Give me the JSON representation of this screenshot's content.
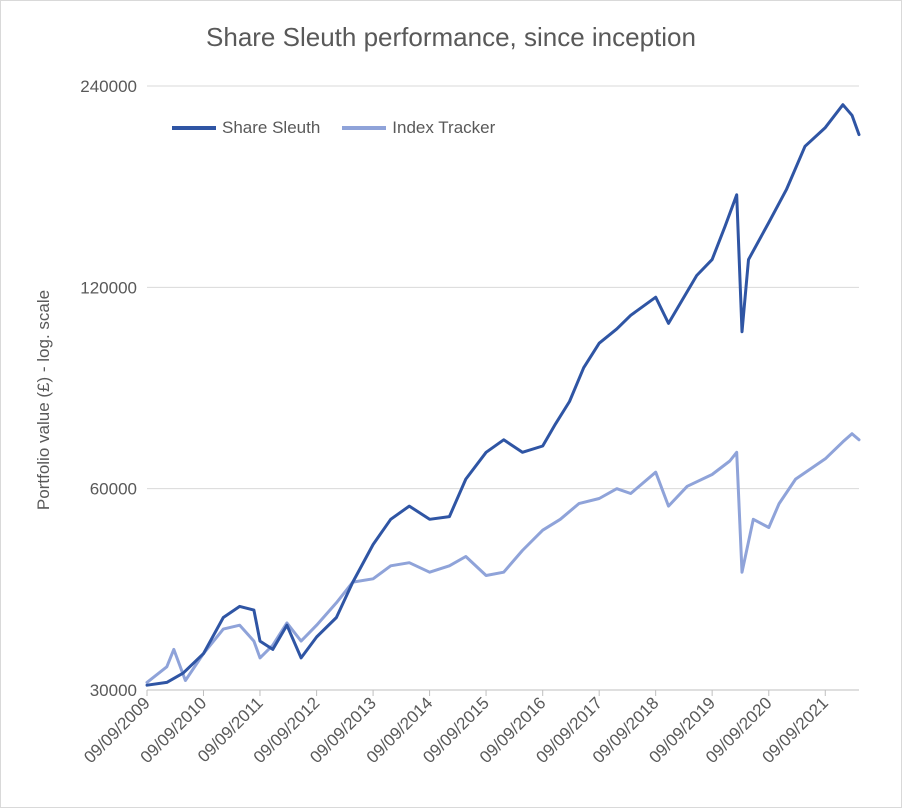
{
  "chart_data": {
    "type": "line",
    "title": "Share Sleuth performance, since inception",
    "ylabel": "Portfolio value (£) - log. scale",
    "xlabel": "",
    "y_scale": "log",
    "ylim": [
      30000,
      240000
    ],
    "y_ticks": [
      "240000",
      "120000",
      "60000",
      "30000"
    ],
    "x_range": [
      "2009-09-09",
      "2022-04-15"
    ],
    "x_ticks": [
      "09/09/2009",
      "09/09/2010",
      "09/09/2011",
      "09/09/2012",
      "09/09/2013",
      "09/09/2014",
      "09/09/2015",
      "09/09/2016",
      "09/09/2017",
      "09/09/2018",
      "09/09/2019",
      "09/09/2020",
      "09/09/2021"
    ],
    "grid": "horizontal",
    "legend_position": "top-left",
    "series": [
      {
        "name": "Share Sleuth",
        "color": "#2f55a4",
        "points": [
          [
            "2009-09-09",
            30500
          ],
          [
            "2010-01-15",
            30800
          ],
          [
            "2010-05-01",
            31800
          ],
          [
            "2010-09-09",
            34000
          ],
          [
            "2011-01-15",
            38500
          ],
          [
            "2011-05-01",
            40000
          ],
          [
            "2011-08-01",
            39500
          ],
          [
            "2011-09-09",
            35500
          ],
          [
            "2011-12-01",
            34500
          ],
          [
            "2012-03-01",
            37500
          ],
          [
            "2012-06-01",
            33500
          ],
          [
            "2012-09-09",
            36000
          ],
          [
            "2013-01-15",
            38500
          ],
          [
            "2013-05-01",
            43500
          ],
          [
            "2013-09-09",
            49500
          ],
          [
            "2014-01-01",
            54000
          ],
          [
            "2014-05-01",
            56500
          ],
          [
            "2014-09-09",
            54000
          ],
          [
            "2015-01-15",
            54500
          ],
          [
            "2015-05-01",
            62000
          ],
          [
            "2015-09-09",
            68000
          ],
          [
            "2016-01-01",
            71000
          ],
          [
            "2016-05-01",
            68000
          ],
          [
            "2016-09-09",
            69500
          ],
          [
            "2016-12-01",
            75000
          ],
          [
            "2017-03-01",
            81000
          ],
          [
            "2017-06-01",
            91000
          ],
          [
            "2017-09-09",
            99000
          ],
          [
            "2018-01-01",
            104000
          ],
          [
            "2018-04-01",
            109000
          ],
          [
            "2018-09-09",
            116000
          ],
          [
            "2018-12-01",
            106000
          ],
          [
            "2019-03-01",
            115000
          ],
          [
            "2019-06-01",
            125000
          ],
          [
            "2019-09-09",
            132000
          ],
          [
            "2019-12-01",
            148000
          ],
          [
            "2020-02-15",
            165000
          ],
          [
            "2020-03-20",
            103000
          ],
          [
            "2020-05-01",
            132000
          ],
          [
            "2020-09-09",
            150000
          ],
          [
            "2021-01-01",
            168000
          ],
          [
            "2021-05-01",
            195000
          ],
          [
            "2021-09-09",
            208000
          ],
          [
            "2022-01-01",
            225000
          ],
          [
            "2022-03-01",
            217000
          ],
          [
            "2022-04-15",
            203000
          ]
        ]
      },
      {
        "name": "Index Tracker",
        "color": "#8fa3d9",
        "points": [
          [
            "2009-09-09",
            30800
          ],
          [
            "2010-01-15",
            32500
          ],
          [
            "2010-03-01",
            34500
          ],
          [
            "2010-05-15",
            31000
          ],
          [
            "2010-09-09",
            34000
          ],
          [
            "2011-01-15",
            37000
          ],
          [
            "2011-05-01",
            37500
          ],
          [
            "2011-08-01",
            35500
          ],
          [
            "2011-09-09",
            33500
          ],
          [
            "2011-12-01",
            35000
          ],
          [
            "2012-03-01",
            37800
          ],
          [
            "2012-06-01",
            35500
          ],
          [
            "2012-09-09",
            37500
          ],
          [
            "2013-01-15",
            40500
          ],
          [
            "2013-05-01",
            43500
          ],
          [
            "2013-09-09",
            44000
          ],
          [
            "2014-01-01",
            46000
          ],
          [
            "2014-05-01",
            46500
          ],
          [
            "2014-09-09",
            45000
          ],
          [
            "2015-01-15",
            46000
          ],
          [
            "2015-05-01",
            47500
          ],
          [
            "2015-09-09",
            44500
          ],
          [
            "2016-01-01",
            45000
          ],
          [
            "2016-05-01",
            48500
          ],
          [
            "2016-09-09",
            52000
          ],
          [
            "2017-01-01",
            54000
          ],
          [
            "2017-05-01",
            57000
          ],
          [
            "2017-09-09",
            58000
          ],
          [
            "2018-01-01",
            60000
          ],
          [
            "2018-04-01",
            59000
          ],
          [
            "2018-09-09",
            63500
          ],
          [
            "2018-12-01",
            56500
          ],
          [
            "2019-04-01",
            60500
          ],
          [
            "2019-09-09",
            63000
          ],
          [
            "2020-01-01",
            66000
          ],
          [
            "2020-02-15",
            68000
          ],
          [
            "2020-03-20",
            45000
          ],
          [
            "2020-06-01",
            54000
          ],
          [
            "2020-09-09",
            52500
          ],
          [
            "2020-11-15",
            57000
          ],
          [
            "2021-03-01",
            62000
          ],
          [
            "2021-09-09",
            66500
          ],
          [
            "2022-01-01",
            70500
          ],
          [
            "2022-03-01",
            72500
          ],
          [
            "2022-04-15",
            71000
          ]
        ]
      }
    ]
  }
}
